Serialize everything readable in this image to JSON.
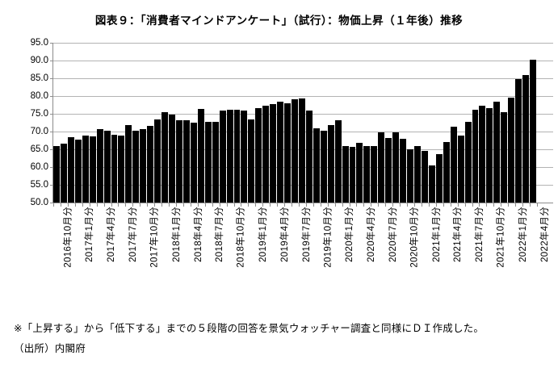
{
  "title": "図表９：「消費者マインドアンケート」（試行）：物価上昇（１年後）推移",
  "footnote": "※「上昇する」から「低下する」までの５段階の回答を景気ウォッチャー調査と同様にＤＩ作成した。",
  "source": "（出所）内閣府",
  "colors": {
    "bar": "#000000",
    "gridline": "#b3b3b3",
    "axis": "#8c8c8c",
    "text": "#000000"
  },
  "chart_data": {
    "type": "bar",
    "title": "図表９：「消費者マインドアンケート」（試行）：物価上昇（１年後）推移",
    "xlabel": "",
    "ylabel": "",
    "ylim": [
      50.0,
      95.0
    ],
    "ytick_step": 5.0,
    "ytick_labels": [
      "95.0",
      "90.0",
      "85.0",
      "80.0",
      "75.0",
      "70.0",
      "65.0",
      "60.0",
      "55.0",
      "50.0"
    ],
    "grid": true,
    "legend": "none",
    "x_label_every": 3,
    "categories": [
      "2016年10月分",
      "2016年11月分",
      "2016年12月分",
      "2017年1月分",
      "2017年2月分",
      "2017年3月分",
      "2017年4月分",
      "2017年5月分",
      "2017年6月分",
      "2017年7月分",
      "2017年8月分",
      "2017年9月分",
      "2017年10月分",
      "2017年11月分",
      "2017年12月分",
      "2018年1月分",
      "2018年2月分",
      "2018年3月分",
      "2018年4月分",
      "2018年5月分",
      "2018年6月分",
      "2018年7月分",
      "2018年8月分",
      "2018年9月分",
      "2018年10月分",
      "2018年11月分",
      "2018年12月分",
      "2019年1月分",
      "2019年2月分",
      "2019年3月分",
      "2019年4月分",
      "2019年5月分",
      "2019年6月分",
      "2019年7月分",
      "2019年8月分",
      "2019年9月分",
      "2019年10月分",
      "2019年11月分",
      "2019年12月分",
      "2020年1月分",
      "2020年2月分",
      "2020年3月分",
      "2020年4月分",
      "2020年5月分",
      "2020年6月分",
      "2020年7月分",
      "2020年8月分",
      "2020年9月分",
      "2020年10月分",
      "2020年11月分",
      "2020年12月分",
      "2021年1月分",
      "2021年2月分",
      "2021年3月分",
      "2021年4月分",
      "2021年5月分",
      "2021年6月分",
      "2021年7月分",
      "2021年8月分",
      "2021年9月分",
      "2021年10月分",
      "2021年11月分",
      "2021年12月分",
      "2022年1月分",
      "2022年2月分",
      "2022年3月分",
      "2022年4月分"
    ],
    "values": [
      66.0,
      66.7,
      68.4,
      67.7,
      68.8,
      68.6,
      70.7,
      70.3,
      69.2,
      68.9,
      71.8,
      70.2,
      70.7,
      71.6,
      73.3,
      75.4,
      74.8,
      73.1,
      73.1,
      72.4,
      76.4,
      72.7,
      72.7,
      76.0,
      76.2,
      76.2,
      75.8,
      73.3,
      76.5,
      77.3,
      77.7,
      78.3,
      78.0,
      79.2,
      79.4,
      76.0,
      70.8,
      70.3,
      71.8,
      73.2,
      65.8,
      65.7,
      66.9,
      65.9,
      65.9,
      69.7,
      68.2,
      69.7,
      68.0,
      65.0,
      65.9,
      64.6,
      60.5,
      63.7,
      67.1,
      71.4,
      68.9,
      72.7,
      76.2,
      77.3,
      76.7,
      78.4,
      75.5,
      79.5,
      84.8,
      86.0,
      90.2
    ]
  }
}
